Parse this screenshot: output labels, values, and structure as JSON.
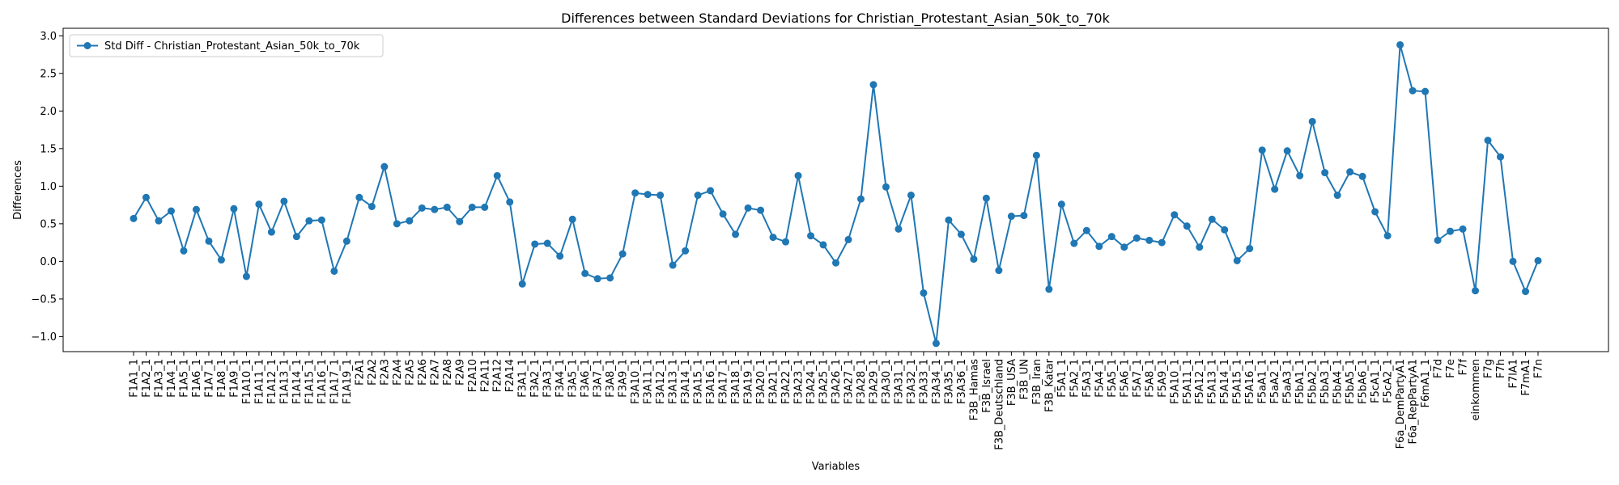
{
  "chart_data": {
    "type": "line",
    "title": "Differences between Standard Deviations for Christian_Protestant_Asian_50k_to_70k",
    "xlabel": "Variables",
    "ylabel": "Differences",
    "ylim": [
      -1.2,
      3.1
    ],
    "yticks": [
      -1.0,
      -0.5,
      0.0,
      0.5,
      1.0,
      1.5,
      2.0,
      2.5,
      3.0
    ],
    "ytick_labels": [
      "−1.0",
      "−0.5",
      "0.0",
      "0.5",
      "1.0",
      "1.5",
      "2.0",
      "2.5",
      "3.0"
    ],
    "grid": false,
    "legend_position": "upper-left",
    "color": "#1f77b4",
    "categories": [
      "F1A1_1",
      "F1A2_1",
      "F1A3_1",
      "F1A4_1",
      "F1A5_1",
      "F1A6_1",
      "F1A7_1",
      "F1A8_1",
      "F1A9_1",
      "F1A10_1",
      "F1A11_1",
      "F1A12_1",
      "F1A13_1",
      "F1A14_1",
      "F1A15_1",
      "F1A16_1",
      "F1A17_1",
      "F1A19_1",
      "F2A1",
      "F2A2",
      "F2A3",
      "F2A4",
      "F2A5",
      "F2A6",
      "F2A7",
      "F2A8",
      "F2A9",
      "F2A10",
      "F2A11",
      "F2A12",
      "F2A14",
      "F3A1_1",
      "F3A2_1",
      "F3A3_1",
      "F3A4_1",
      "F3A5_1",
      "F3A6_1",
      "F3A7_1",
      "F3A8_1",
      "F3A9_1",
      "F3A10_1",
      "F3A11_1",
      "F3A12_1",
      "F3A13_1",
      "F3A14_1",
      "F3A15_1",
      "F3A16_1",
      "F3A17_1",
      "F3A18_1",
      "F3A19_1",
      "F3A20_1",
      "F3A21_1",
      "F3A22_1",
      "F3A23_1",
      "F3A24_1",
      "F3A25_1",
      "F3A26_1",
      "F3A27_1",
      "F3A28_1",
      "F3A29_1",
      "F3A30_1",
      "F3A31_1",
      "F3A32_1",
      "F3A33_1",
      "F3A34_1",
      "F3A35_1",
      "F3A36_1",
      "F3B_Hamas",
      "F3B_Israel",
      "F3B_Deutschland",
      "F3B_USA",
      "F3B_UN",
      "F3B_Iran",
      "F3B_Katar",
      "F5A1_1",
      "F5A2_1",
      "F5A3_1",
      "F5A4_1",
      "F5A5_1",
      "F5A6_1",
      "F5A7_1",
      "F5A8_1",
      "F5A9_1",
      "F5A10_1",
      "F5A11_1",
      "F5A12_1",
      "F5A13_1",
      "F5A14_1",
      "F5A15_1",
      "F5A16_1",
      "F5aA1_1",
      "F5aA2_1",
      "F5aA3_1",
      "F5bA1_1",
      "F5bA2_1",
      "F5bA3_1",
      "F5bA4_1",
      "F5bA5_1",
      "F5bA6_1",
      "F5cA1_1",
      "F5cA2_1",
      "F6a_DemPartyA1",
      "F6a_RepPartyA1",
      "F6mA1_1",
      "F7d",
      "F7e",
      "F7f",
      "einkommen",
      "F7g",
      "F7h",
      "F7lA1",
      "F7mA1",
      "F7n"
    ],
    "series": [
      {
        "name": "Std Diff - Christian_Protestant_Asian_50k_to_70k",
        "values": [
          0.57,
          0.85,
          0.54,
          0.67,
          0.14,
          0.69,
          0.27,
          0.02,
          0.7,
          -0.2,
          0.76,
          0.39,
          0.8,
          0.33,
          0.54,
          0.55,
          -0.13,
          0.27,
          0.85,
          0.73,
          1.26,
          0.5,
          0.54,
          0.71,
          0.69,
          0.72,
          0.53,
          0.72,
          0.72,
          1.14,
          0.79,
          -0.3,
          0.23,
          0.24,
          0.07,
          0.56,
          -0.16,
          -0.23,
          -0.22,
          0.1,
          0.91,
          0.89,
          0.88,
          -0.05,
          0.14,
          0.88,
          0.94,
          0.63,
          0.36,
          0.71,
          0.68,
          0.32,
          0.26,
          1.14,
          0.34,
          0.22,
          -0.02,
          0.29,
          0.83,
          2.35,
          0.99,
          0.43,
          0.88,
          -0.42,
          -1.09,
          0.55,
          0.36,
          0.03,
          0.84,
          -0.12,
          0.6,
          0.61,
          1.41,
          -0.37,
          0.76,
          0.24,
          0.41,
          0.2,
          0.33,
          0.19,
          0.31,
          0.28,
          0.25,
          0.62,
          0.47,
          0.19,
          0.56,
          0.42,
          0.01,
          0.17,
          1.48,
          0.96,
          1.47,
          1.14,
          1.86,
          1.18,
          0.88,
          1.19,
          1.13,
          0.66,
          0.34,
          2.88,
          2.27,
          2.26,
          0.28,
          0.4,
          0.43,
          -0.39,
          1.61,
          1.39,
          0.0,
          -0.4,
          0.01
        ]
      }
    ]
  }
}
